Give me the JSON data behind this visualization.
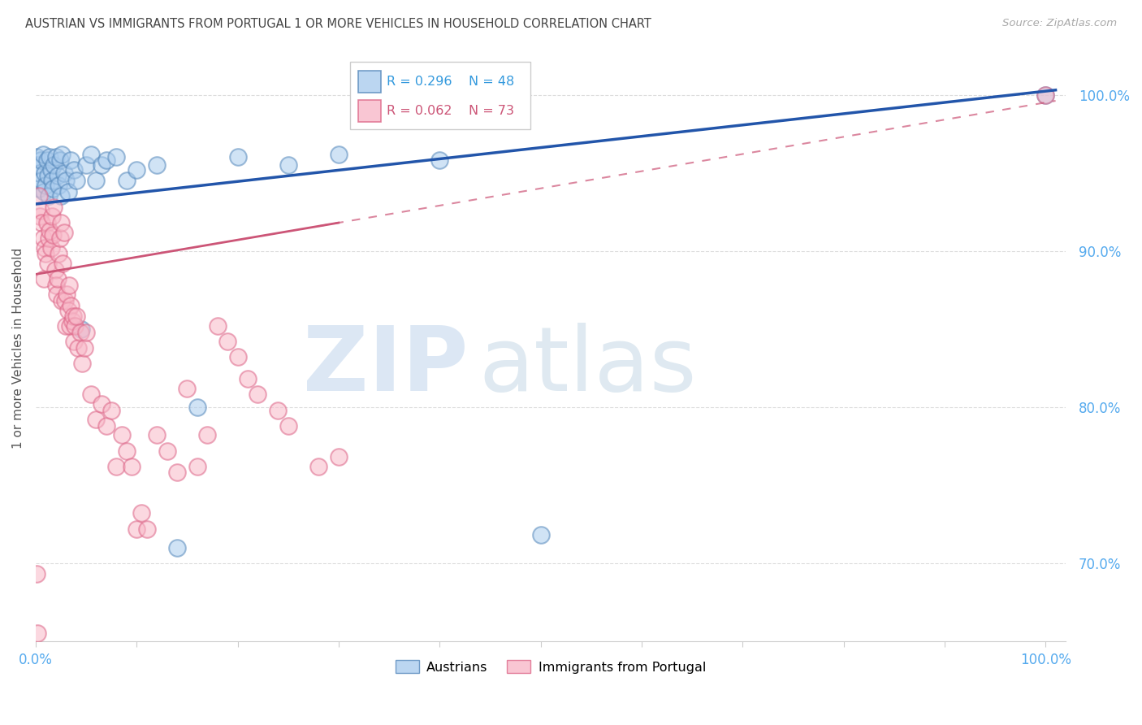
{
  "title": "AUSTRIAN VS IMMIGRANTS FROM PORTUGAL 1 OR MORE VEHICLES IN HOUSEHOLD CORRELATION CHART",
  "source": "Source: ZipAtlas.com",
  "ylabel": "1 or more Vehicles in Household",
  "r_austrians": 0.296,
  "n_austrians": 48,
  "r_immigrants": 0.062,
  "n_immigrants": 73,
  "austrians_x": [
    0.001,
    0.002,
    0.003,
    0.004,
    0.005,
    0.006,
    0.007,
    0.008,
    0.009,
    0.01,
    0.011,
    0.012,
    0.013,
    0.014,
    0.015,
    0.016,
    0.017,
    0.018,
    0.02,
    0.022,
    0.023,
    0.024,
    0.025,
    0.026,
    0.028,
    0.03,
    0.032,
    0.035,
    0.038,
    0.04,
    0.045,
    0.05,
    0.055,
    0.06,
    0.065,
    0.07,
    0.08,
    0.09,
    0.1,
    0.12,
    0.14,
    0.16,
    0.2,
    0.25,
    0.3,
    0.4,
    0.5,
    1.0
  ],
  "austrians_y": [
    0.96,
    0.955,
    0.94,
    0.95,
    0.958,
    0.945,
    0.962,
    0.938,
    0.95,
    0.942,
    0.958,
    0.948,
    0.935,
    0.96,
    0.952,
    0.945,
    0.94,
    0.955,
    0.96,
    0.948,
    0.942,
    0.958,
    0.935,
    0.962,
    0.95,
    0.945,
    0.938,
    0.958,
    0.952,
    0.945,
    0.85,
    0.955,
    0.962,
    0.945,
    0.955,
    0.958,
    0.96,
    0.945,
    0.952,
    0.955,
    0.71,
    0.8,
    0.96,
    0.955,
    0.962,
    0.958,
    0.718,
    1.0
  ],
  "immigrants_x": [
    0.001,
    0.002,
    0.003,
    0.004,
    0.005,
    0.006,
    0.007,
    0.008,
    0.009,
    0.01,
    0.011,
    0.012,
    0.013,
    0.014,
    0.015,
    0.016,
    0.017,
    0.018,
    0.019,
    0.02,
    0.021,
    0.022,
    0.023,
    0.024,
    0.025,
    0.026,
    0.027,
    0.028,
    0.029,
    0.03,
    0.031,
    0.032,
    0.033,
    0.034,
    0.035,
    0.036,
    0.037,
    0.038,
    0.039,
    0.04,
    0.042,
    0.044,
    0.046,
    0.048,
    0.05,
    0.055,
    0.06,
    0.065,
    0.07,
    0.075,
    0.08,
    0.085,
    0.09,
    0.095,
    0.1,
    0.105,
    0.11,
    0.12,
    0.13,
    0.14,
    0.15,
    0.16,
    0.17,
    0.18,
    0.19,
    0.2,
    0.21,
    0.22,
    0.24,
    0.25,
    0.28,
    0.3,
    1.0
  ],
  "immigrants_y": [
    0.693,
    0.655,
    0.935,
    0.922,
    0.926,
    0.918,
    0.908,
    0.882,
    0.902,
    0.898,
    0.918,
    0.892,
    0.908,
    0.913,
    0.902,
    0.922,
    0.91,
    0.928,
    0.888,
    0.878,
    0.872,
    0.882,
    0.898,
    0.908,
    0.918,
    0.868,
    0.892,
    0.912,
    0.868,
    0.852,
    0.872,
    0.862,
    0.878,
    0.852,
    0.865,
    0.855,
    0.858,
    0.842,
    0.852,
    0.858,
    0.838,
    0.848,
    0.828,
    0.838,
    0.848,
    0.808,
    0.792,
    0.802,
    0.788,
    0.798,
    0.762,
    0.782,
    0.772,
    0.762,
    0.722,
    0.732,
    0.722,
    0.782,
    0.772,
    0.758,
    0.812,
    0.762,
    0.782,
    0.852,
    0.842,
    0.832,
    0.818,
    0.808,
    0.798,
    0.788,
    0.762,
    0.768,
    1.0
  ],
  "color_austrians_fill": "#aaccee",
  "color_austrians_edge": "#5588bb",
  "color_immigrants_fill": "#f8b8c8",
  "color_immigrants_edge": "#dd6688",
  "color_trendline_austrians": "#2255aa",
  "color_trendline_immigrants": "#cc5577",
  "background_color": "#ffffff",
  "grid_color": "#dddddd",
  "axis_tick_color": "#55aaee",
  "title_color": "#444444",
  "source_color": "#aaaaaa",
  "ytick_values": [
    0.7,
    0.8,
    0.9,
    1.0
  ],
  "ytick_labels": [
    "70.0%",
    "80.0%",
    "90.0%",
    "100.0%"
  ],
  "legend_r_color_austrians": "#3399dd",
  "legend_r_color_immigrants": "#cc5577",
  "watermark_zip_color": "#c5d8ee",
  "watermark_atlas_color": "#b8cfe0"
}
